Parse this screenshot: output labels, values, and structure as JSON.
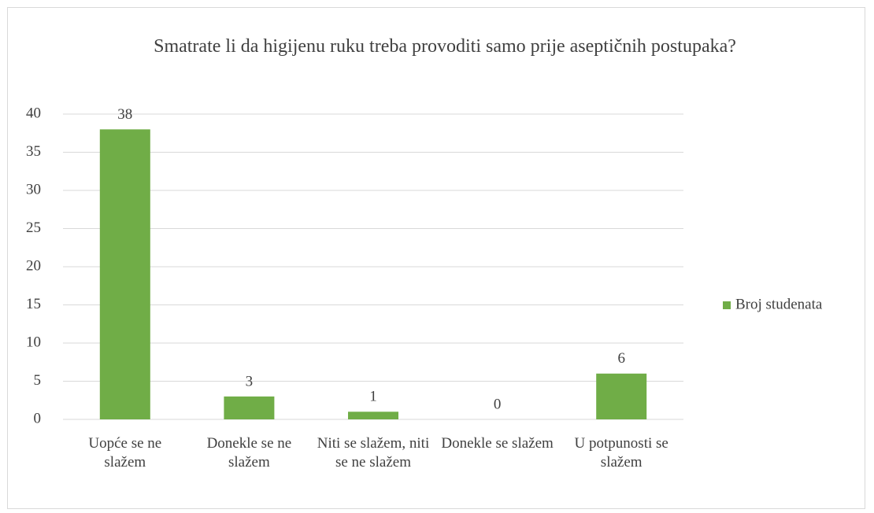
{
  "chart_data": {
    "type": "bar",
    "title": "Smatrate li da higijenu ruku treba provoditi samo prije aseptičnih postupaka?",
    "categories": [
      "Uopće se ne slažem",
      "Donekle se ne slažem",
      "Niti se slažem, niti se ne slažem",
      "Donekle se slažem",
      "U potpunosti se slažem"
    ],
    "series": [
      {
        "name": "Broj studenata",
        "color": "#70ad47",
        "values": [
          38,
          3,
          1,
          0,
          6
        ]
      }
    ],
    "ylim": [
      0,
      40
    ],
    "yticks": [
      0,
      5,
      10,
      15,
      20,
      25,
      30,
      35,
      40
    ],
    "grid": true,
    "legend": "right"
  }
}
